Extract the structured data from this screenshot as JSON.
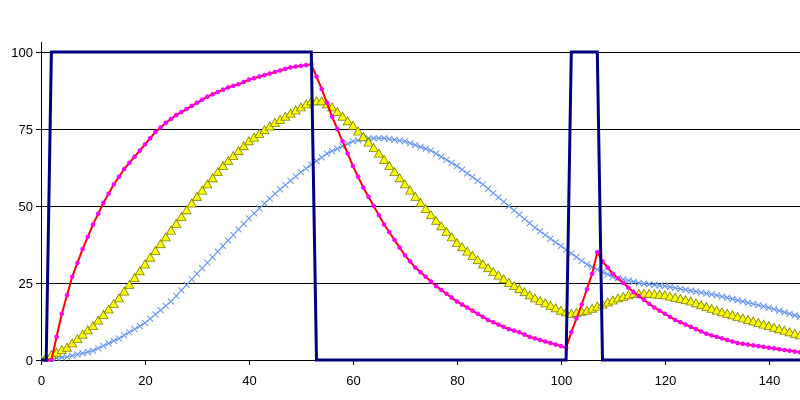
{
  "chart_data": {
    "type": "line",
    "title": "",
    "xlabel": "",
    "ylabel": "",
    "xlim": [
      0,
      146
    ],
    "ylim": [
      0,
      100
    ],
    "x_ticks": [
      0,
      20,
      40,
      60,
      80,
      100,
      120,
      140
    ],
    "y_ticks": [
      0,
      25,
      50,
      75,
      100
    ],
    "grid": {
      "horizontal": true,
      "vertical": false
    },
    "legend": "none",
    "series": [
      {
        "color": "#000080",
        "marker": "none",
        "x": [
          0,
          1,
          2,
          52,
          53,
          101,
          102,
          107,
          108,
          146
        ],
        "y": [
          0,
          0,
          100,
          100,
          0,
          0,
          100,
          100,
          0,
          0
        ]
      },
      {
        "color": "#FF00FF",
        "line_color": "#FF0000",
        "marker": "circle",
        "x": [
          0,
          2,
          4,
          6,
          8,
          10,
          12,
          14,
          16,
          18,
          20,
          22,
          24,
          26,
          28,
          30,
          32,
          34,
          36,
          38,
          40,
          42,
          44,
          46,
          48,
          50,
          52,
          54,
          56,
          58,
          60,
          62,
          64,
          66,
          68,
          70,
          72,
          74,
          76,
          78,
          80,
          82,
          84,
          86,
          88,
          90,
          92,
          94,
          96,
          98,
          100,
          101,
          102,
          104,
          106,
          107,
          108,
          110,
          112,
          114,
          116,
          118,
          120,
          122,
          124,
          126,
          128,
          130,
          132,
          134,
          136,
          138,
          140,
          142,
          144,
          146
        ],
        "y": [
          0,
          0,
          15,
          27,
          36,
          44,
          51,
          57,
          62,
          66,
          70,
          74,
          77,
          79.5,
          81.5,
          83.5,
          85.5,
          87,
          88.5,
          89.5,
          91,
          92,
          93,
          94,
          95,
          95.5,
          96,
          88,
          79,
          71,
          63,
          56,
          50,
          44,
          39,
          34,
          30,
          27,
          24,
          21.5,
          19,
          17,
          15,
          13,
          11.5,
          10,
          9,
          7.5,
          6.5,
          5.5,
          4.5,
          4,
          9,
          18,
          28,
          35,
          32,
          28,
          25,
          22,
          19.5,
          17,
          15,
          13,
          11.5,
          10,
          8.5,
          7.5,
          6.5,
          5.5,
          5,
          4.5,
          4,
          3.5,
          3,
          2.5
        ]
      },
      {
        "color": "#FFFF00",
        "stroke": "#808000",
        "marker": "triangle",
        "x": [
          0,
          5,
          10,
          15,
          20,
          25,
          30,
          35,
          40,
          45,
          50,
          52,
          54,
          56,
          60,
          65,
          70,
          75,
          80,
          85,
          90,
          95,
          100,
          102,
          105,
          108,
          111,
          114,
          117,
          120,
          125,
          130,
          135,
          140,
          146
        ],
        "y": [
          0,
          4,
          11,
          20,
          31,
          42,
          53,
          63,
          71,
          77,
          82,
          84,
          84,
          82,
          76,
          67,
          57,
          47,
          38,
          31,
          25,
          20,
          16,
          15,
          16,
          18,
          20,
          21.5,
          21.5,
          21,
          19,
          16,
          13.5,
          11,
          8
        ]
      },
      {
        "color": "#6495ED",
        "marker": "cross",
        "x": [
          0,
          5,
          10,
          15,
          20,
          25,
          30,
          35,
          40,
          45,
          50,
          55,
          60,
          63,
          66,
          70,
          75,
          80,
          85,
          90,
          95,
          100,
          105,
          110,
          115,
          120,
          125,
          130,
          135,
          140,
          146
        ],
        "y": [
          0,
          1,
          3,
          7,
          12,
          19,
          28,
          37,
          46,
          54,
          61,
          67,
          71,
          72,
          72,
          71,
          68,
          63,
          57,
          50,
          43,
          37,
          31,
          27,
          25,
          24,
          22.5,
          21,
          19,
          17,
          14
        ]
      }
    ]
  }
}
